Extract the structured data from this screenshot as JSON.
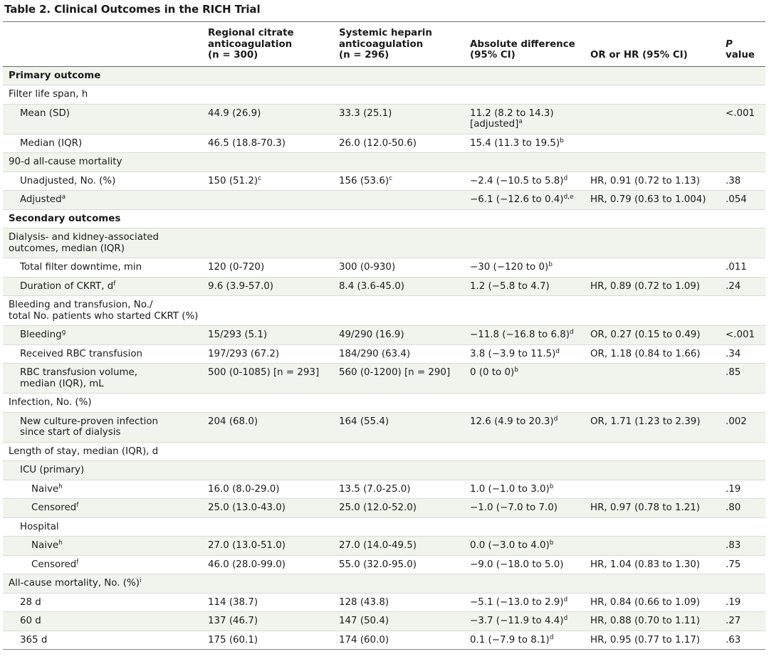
{
  "caption": "Table 2. Clinical Outcomes in the RICH Trial",
  "headers": {
    "c1": "Regional citrate\nanticoagulation\n(n = 300)",
    "c2": "Systemic heparin\nanticoagulation\n(n = 296)",
    "c3": "Absolute difference\n(95% CI)",
    "c4": "OR or HR (95% CI)",
    "c5_italic": "P",
    "c5_rest": " value"
  },
  "rows": [
    {
      "type": "section",
      "label": "Primary outcome"
    },
    {
      "type": "group",
      "indent": 1,
      "label": "Filter life span, h"
    },
    {
      "indent": 2,
      "label": "Mean (SD)",
      "c1": "44.9 (26.9)",
      "c2": "33.3 (25.1)",
      "c3": "11.2 (8.2 to 14.3)\n[adjusted]",
      "c3_sup": "a",
      "c4": "",
      "c5": "<.001"
    },
    {
      "indent": 2,
      "label": "Median (IQR)",
      "c1": "46.5 (18.8-70.3)",
      "c2": "26.0 (12.0-50.6)",
      "c3": "15.4 (11.3 to 19.5)",
      "c3_sup": "b",
      "c4": "",
      "c5": ""
    },
    {
      "type": "group",
      "indent": 1,
      "label": "90-d all-cause mortality"
    },
    {
      "indent": 2,
      "label": "Unadjusted, No. (%)",
      "c1": "150 (51.2)",
      "c1_sup": "c",
      "c2": "156 (53.6)",
      "c2_sup": "c",
      "c3": "−2.4 (−10.5 to 5.8)",
      "c3_sup": "d",
      "c4": "HR, 0.91 (0.72 to 1.13)",
      "c5": ".38"
    },
    {
      "indent": 2,
      "label": "Adjusted",
      "label_sup": "a",
      "c1": "",
      "c2": "",
      "c3": "−6.1 (−12.6 to 0.4)",
      "c3_sup": "d,e",
      "c4": "HR, 0.79 (0.63 to 1.004)",
      "c5": ".054"
    },
    {
      "type": "section",
      "label": "Secondary outcomes",
      "break": true
    },
    {
      "type": "group",
      "indent": 1,
      "label": "Dialysis- and kidney-associated\noutcomes, median (IQR)"
    },
    {
      "indent": 2,
      "label": "Total filter downtime, min",
      "c1": "120 (0-720)",
      "c2": "300 (0-930)",
      "c3": "−30 (−120 to 0)",
      "c3_sup": "b",
      "c4": "",
      "c5": ".011"
    },
    {
      "indent": 2,
      "label": "Duration of CKRT, d",
      "label_sup": "f",
      "c1": "9.6 (3.9-57.0)",
      "c2": "8.4 (3.6-45.0)",
      "c3": "1.2 (−5.8 to 4.7)",
      "c4": "HR, 0.89 (0.72 to 1.09)",
      "c5": ".24"
    },
    {
      "type": "group",
      "indent": 1,
      "label": "Bleeding and transfusion, No./\ntotal No. patients who started CKRT (%)"
    },
    {
      "indent": 2,
      "label": "Bleeding",
      "label_sup": "g",
      "c1": "15/293 (5.1)",
      "c2": "49/290 (16.9)",
      "c3": "−11.8 (−16.8 to 6.8)",
      "c3_sup": "d",
      "c4": "OR, 0.27 (0.15 to 0.49)",
      "c5": "<.001"
    },
    {
      "indent": 2,
      "label": "Received RBC transfusion",
      "c1": "197/293 (67.2)",
      "c2": "184/290 (63.4)",
      "c3": "3.8 (−3.9 to 11.5)",
      "c3_sup": "d",
      "c4": "OR, 1.18 (0.84 to 1.66)",
      "c5": ".34"
    },
    {
      "indent": 2,
      "label": "RBC transfusion volume,\nmedian (IQR), mL",
      "c1": "500 (0-1085) [n = 293]",
      "c2": "560 (0-1200) [n = 290]",
      "c3": "0 (0 to 0)",
      "c3_sup": "b",
      "c4": "",
      "c5": ".85"
    },
    {
      "type": "group",
      "indent": 1,
      "label": "Infection, No. (%)"
    },
    {
      "indent": 2,
      "label": "New culture-proven infection\nsince start of dialysis",
      "c1": "204 (68.0)",
      "c2": "164 (55.4)",
      "c3": "12.6 (4.9 to 20.3)",
      "c3_sup": "d",
      "c4": "OR, 1.71 (1.23 to 2.39)",
      "c5": ".002"
    },
    {
      "type": "group",
      "indent": 1,
      "label": "Length of stay, median (IQR), d"
    },
    {
      "type": "group",
      "indent": 2,
      "label": "ICU (primary)"
    },
    {
      "indent": 3,
      "label": "Naive",
      "label_sup": "h",
      "c1": "16.0 (8.0-29.0)",
      "c2": "13.5 (7.0-25.0)",
      "c3": "1.0 (−1.0 to 3.0)",
      "c3_sup": "b",
      "c4": "",
      "c5": ".19"
    },
    {
      "indent": 3,
      "label": "Censored",
      "label_sup": "f",
      "c1": "25.0 (13.0-43.0)",
      "c2": "25.0 (12.0-52.0)",
      "c3": "−1.0 (−7.0 to 7.0)",
      "c4": "HR, 0.97 (0.78 to 1.21)",
      "c5": ".80"
    },
    {
      "type": "group",
      "indent": 2,
      "label": "Hospital"
    },
    {
      "indent": 3,
      "label": "Naive",
      "label_sup": "h",
      "c1": "27.0 (13.0-51.0)",
      "c2": "27.0 (14.0-49.5)",
      "c3": "0.0 (−3.0 to 4.0)",
      "c3_sup": "b",
      "c4": "",
      "c5": ".83"
    },
    {
      "indent": 3,
      "label": "Censored",
      "label_sup": "f",
      "c1": "46.0 (28.0-99.0)",
      "c2": "55.0 (32.0-95.0)",
      "c3": "−9.0 (−18.0 to 5.0)",
      "c4": "HR, 1.04 (0.83 to 1.30)",
      "c5": ".75"
    },
    {
      "type": "group",
      "indent": 1,
      "label": "All-cause mortality, No. (%)",
      "label_sup": "i"
    },
    {
      "indent": 2,
      "label": "28 d",
      "c1": "114 (38.7)",
      "c2": "128 (43.8)",
      "c3": "−5.1 (−13.0 to 2.9)",
      "c3_sup": "d",
      "c4": "HR, 0.84 (0.66 to 1.09)",
      "c5": ".19"
    },
    {
      "indent": 2,
      "label": "60 d",
      "c1": "137 (46.7)",
      "c2": "147 (50.4)",
      "c3": "−3.7 (−11.9 to 4.4)",
      "c3_sup": "d",
      "c4": "HR, 0.88 (0.70 to 1.11)",
      "c5": ".27"
    },
    {
      "indent": 2,
      "label": "365 d",
      "c1": "175 (60.1)",
      "c2": "174 (60.0)",
      "c3": "0.1 (−7.9 to 8.1)",
      "c3_sup": "d",
      "c4": "HR, 0.95 (0.77 to 1.17)",
      "c5": ".63"
    }
  ]
}
